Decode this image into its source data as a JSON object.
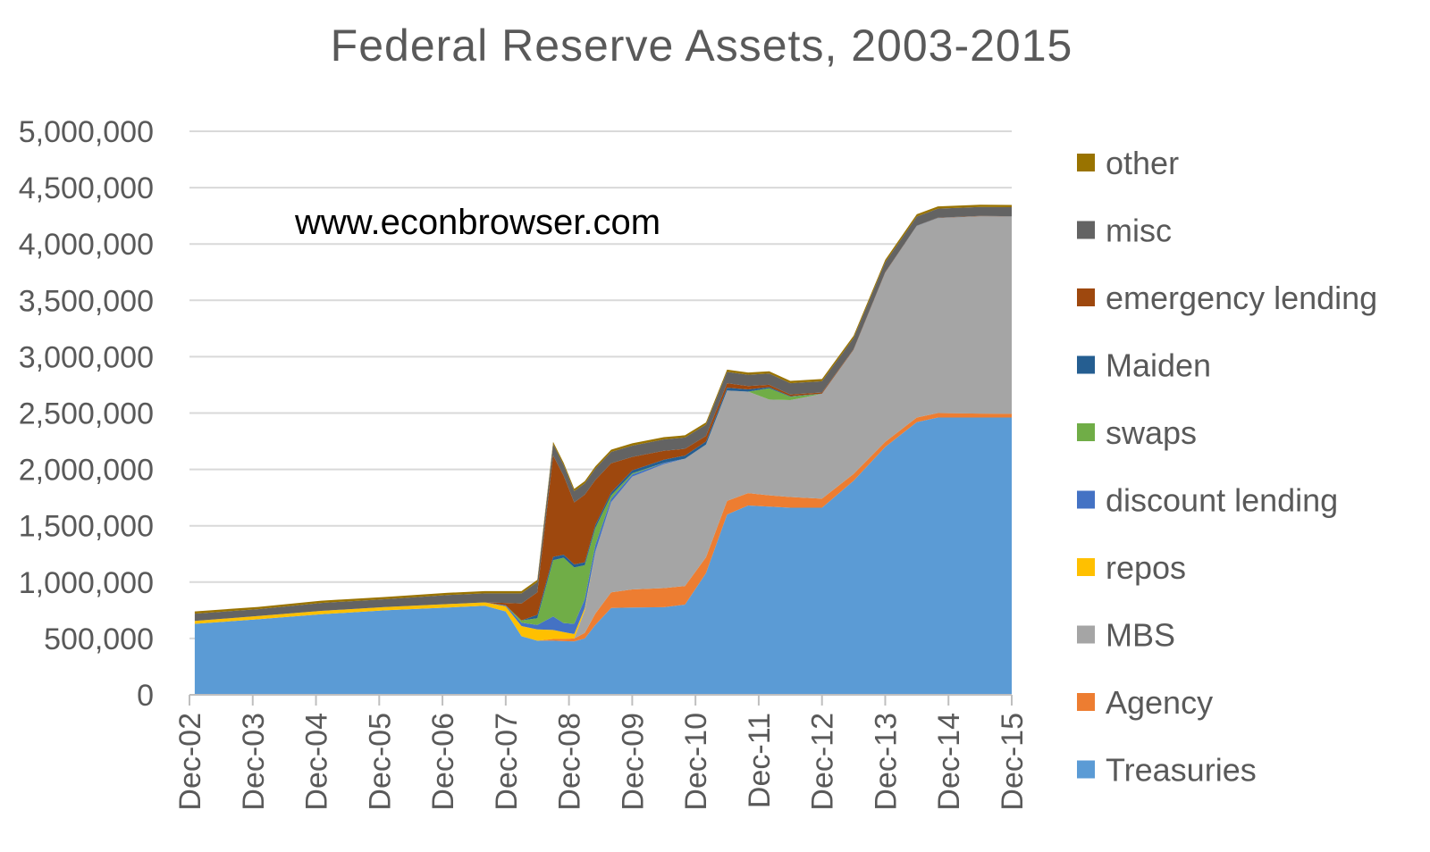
{
  "chart_data": {
    "type": "area",
    "stacked": true,
    "title": "Federal Reserve Assets, 2003-2015",
    "annotation": "www.econbrowser.com",
    "xlabel": "",
    "ylabel": "",
    "ylim": [
      0,
      5000000
    ],
    "y_ticks": [
      "0",
      "500,000",
      "1,000,000",
      "1,500,000",
      "2,000,000",
      "2,500,000",
      "3,000,000",
      "3,500,000",
      "4,000,000",
      "4,500,000",
      "5,000,000"
    ],
    "y_tick_values": [
      0,
      500000,
      1000000,
      1500000,
      2000000,
      2500000,
      3000000,
      3500000,
      4000000,
      4500000,
      5000000
    ],
    "x_ticks": [
      "Dec-02",
      "Dec-03",
      "Dec-04",
      "Dec-05",
      "Dec-06",
      "Dec-07",
      "Dec-08",
      "Dec-09",
      "Dec-10",
      "Dec-11",
      "Dec-12",
      "Dec-13",
      "Dec-14",
      "Dec-15"
    ],
    "grid": true,
    "legend_position": "right",
    "x": [
      "2003-01",
      "2004-01",
      "2005-01",
      "2006-01",
      "2007-01",
      "2007-08",
      "2007-12",
      "2008-03",
      "2008-06",
      "2008-09",
      "2008-11",
      "2009-01",
      "2009-03",
      "2009-05",
      "2009-08",
      "2009-12",
      "2010-06",
      "2010-10",
      "2011-02",
      "2011-06",
      "2011-10",
      "2012-02",
      "2012-06",
      "2012-12",
      "2013-06",
      "2013-12",
      "2014-06",
      "2014-10",
      "2015-06",
      "2015-12"
    ],
    "series": [
      {
        "name": "Treasuries",
        "color": "#5b9bd5",
        "values": [
          630000,
          670000,
          715000,
          750000,
          775000,
          790000,
          740000,
          520000,
          480000,
          480000,
          476000,
          475000,
          500000,
          620000,
          770000,
          775000,
          777000,
          800000,
          1080000,
          1600000,
          1680000,
          1670000,
          1660000,
          1660000,
          1900000,
          2200000,
          2420000,
          2460000,
          2460000,
          2460000
        ]
      },
      {
        "name": "Agency",
        "color": "#ed7d31",
        "values": [
          0,
          0,
          0,
          0,
          0,
          0,
          0,
          0,
          0,
          15000,
          20000,
          25000,
          50000,
          100000,
          140000,
          160000,
          170000,
          165000,
          140000,
          120000,
          110000,
          100000,
          95000,
          80000,
          60000,
          45000,
          40000,
          40000,
          35000,
          33000
        ]
      },
      {
        "name": "MBS",
        "color": "#a5a5a5",
        "values": [
          0,
          0,
          0,
          0,
          0,
          0,
          0,
          0,
          0,
          0,
          0,
          0,
          200000,
          550000,
          800000,
          1000000,
          1100000,
          1130000,
          1000000,
          980000,
          900000,
          850000,
          860000,
          930000,
          1100000,
          1500000,
          1700000,
          1730000,
          1750000,
          1750000
        ]
      },
      {
        "name": "repos",
        "color": "#ffc000",
        "values": [
          25000,
          30000,
          30000,
          28000,
          30000,
          30000,
          45000,
          90000,
          100000,
          80000,
          60000,
          40000,
          20000,
          0,
          0,
          0,
          0,
          0,
          0,
          0,
          0,
          0,
          0,
          0,
          0,
          0,
          0,
          0,
          0,
          0
        ]
      },
      {
        "name": "discount lending",
        "color": "#4472c4",
        "values": [
          0,
          0,
          0,
          0,
          0,
          0,
          10000,
          30000,
          40000,
          120000,
          80000,
          90000,
          80000,
          60000,
          30000,
          20000,
          10000,
          0,
          0,
          0,
          0,
          0,
          0,
          0,
          0,
          0,
          0,
          0,
          0,
          0
        ]
      },
      {
        "name": "swaps",
        "color": "#70ad47",
        "values": [
          0,
          0,
          0,
          0,
          0,
          0,
          0,
          20000,
          60000,
          500000,
          580000,
          500000,
          300000,
          150000,
          30000,
          10000,
          1000,
          0,
          0,
          0,
          0,
          100000,
          30000,
          0,
          0,
          0,
          0,
          0,
          0,
          0
        ]
      },
      {
        "name": "Maiden",
        "color": "#255e91",
        "values": [
          0,
          0,
          0,
          0,
          0,
          0,
          0,
          0,
          30000,
          29000,
          27000,
          27000,
          26000,
          26000,
          25000,
          26000,
          28000,
          28000,
          27000,
          25000,
          20000,
          10000,
          5000,
          2000,
          1500,
          1500,
          1500,
          1500,
          1500,
          1500
        ]
      },
      {
        "name": "emergency lending",
        "color": "#9e480e",
        "values": [
          0,
          0,
          0,
          0,
          0,
          0,
          20000,
          150000,
          200000,
          900000,
          700000,
          550000,
          600000,
          400000,
          260000,
          120000,
          80000,
          60000,
          50000,
          40000,
          30000,
          20000,
          15000,
          10000,
          5000,
          3000,
          2000,
          2000,
          2000,
          2000
        ]
      },
      {
        "name": "misc",
        "color": "#636363",
        "values": [
          65000,
          60000,
          70000,
          70000,
          80000,
          80000,
          85000,
          90000,
          90000,
          100000,
          95000,
          100000,
          100000,
          100000,
          100000,
          100000,
          100000,
          100000,
          100000,
          100000,
          100000,
          100000,
          100000,
          100000,
          100000,
          90000,
          80000,
          80000,
          80000,
          80000
        ]
      },
      {
        "name": "other",
        "color": "#997300",
        "values": [
          20000,
          20000,
          20000,
          20000,
          20000,
          20000,
          20000,
          20000,
          20000,
          20000,
          20000,
          20000,
          20000,
          20000,
          20000,
          20000,
          20000,
          20000,
          20000,
          20000,
          20000,
          20000,
          20000,
          20000,
          20000,
          20000,
          20000,
          20000,
          20000,
          20000
        ]
      }
    ]
  }
}
